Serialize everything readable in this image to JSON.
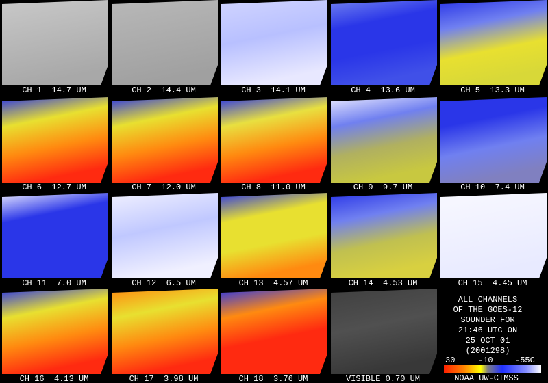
{
  "panels": [
    {
      "label": "CH 1  14.7 UM"
    },
    {
      "label": "CH 2  14.4 UM"
    },
    {
      "label": "CH 3  14.1 UM"
    },
    {
      "label": "CH 4  13.6 UM"
    },
    {
      "label": "CH 5  13.3 UM"
    },
    {
      "label": "CH 6  12.7 UM"
    },
    {
      "label": "CH 7  12.0 UM"
    },
    {
      "label": "CH 8  11.0 UM"
    },
    {
      "label": "CH 9  9.7 UM"
    },
    {
      "label": "CH 10  7.4 UM"
    },
    {
      "label": "CH 11  7.0 UM"
    },
    {
      "label": "CH 12  6.5 UM"
    },
    {
      "label": "CH 13  4.57 UM"
    },
    {
      "label": "CH 14  4.53 UM"
    },
    {
      "label": "CH 15  4.45 UM"
    },
    {
      "label": "CH 16  4.13 UM"
    },
    {
      "label": "CH 17  3.98 UM"
    },
    {
      "label": "CH 18  3.76 UM"
    },
    {
      "label": "VISIBLE 0.70 UM"
    }
  ],
  "info": {
    "lines": [
      "ALL CHANNELS",
      "OF THE GOES-12",
      "SOUNDER FOR",
      "21:46 UTC ON",
      "25 OCT 01",
      "(2001298)"
    ],
    "colorbar_labels": [
      "30",
      "-10",
      "-55C"
    ],
    "credit": "NOAA UW-CIMSS"
  }
}
